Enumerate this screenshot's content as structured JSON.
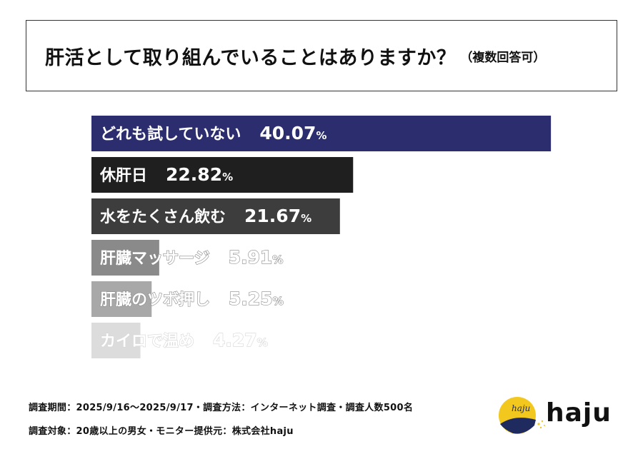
{
  "title": {
    "main": "肝活として取り組んでいることはありますか？",
    "note": "（複数回答可）"
  },
  "chart_data": {
    "type": "bar",
    "orientation": "horizontal",
    "categories": [
      "どれも試していない",
      "休肝日",
      "水をたくさん飲む",
      "肝臓マッサージ",
      "肝臓のツボ押し",
      "カイロで温め"
    ],
    "values": [
      40.07,
      22.82,
      21.67,
      5.91,
      5.25,
      4.27
    ],
    "value_labels": [
      "40.07",
      "22.82",
      "21.67",
      "5.91",
      "5.25",
      "4.27"
    ],
    "unit": "%",
    "colors": [
      "#2b2d6e",
      "#1f1f1f",
      "#3d3d3d",
      "#8a8a8a",
      "#a8a8a8",
      "#dcdcdc"
    ]
  },
  "footer": {
    "line1": "調査期間：2025/9/16～2025/9/17・調査方法：インターネット調査・調査人数500名",
    "line2": "調査対象：20歳以上の男女・モニター提供元：株式会社haju"
  },
  "logo": {
    "text": "haju",
    "mark_text": "haju",
    "yellow": "#f2c81f",
    "navy": "#1f2a5e"
  }
}
